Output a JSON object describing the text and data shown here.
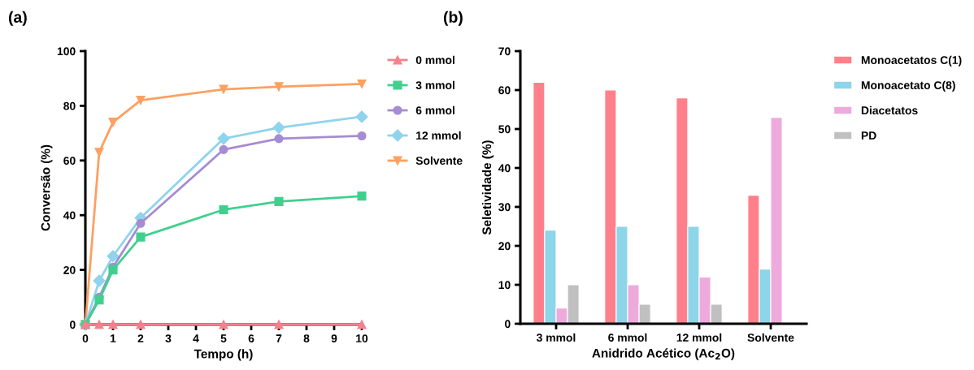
{
  "chart_data": [
    {
      "type": "line",
      "title": "(a)",
      "xlabel": "Tempo (h)",
      "ylabel": "Conversão (%)",
      "x": [
        0,
        0.5,
        1,
        2,
        5,
        7,
        10
      ],
      "xlim": [
        0,
        10
      ],
      "xticks": [
        0,
        1,
        2,
        3,
        4,
        5,
        6,
        7,
        8,
        9,
        10
      ],
      "ylim": [
        0,
        100
      ],
      "yticks": [
        0,
        20,
        40,
        60,
        80,
        100
      ],
      "grid": false,
      "legend": "right",
      "line_style": "solid",
      "series": [
        {
          "name": "0 mmol",
          "color": "#f7808e",
          "marker": "triangle",
          "values": [
            0,
            0,
            0,
            0,
            0,
            0,
            0
          ]
        },
        {
          "name": "3 mmol",
          "color": "#40d08e",
          "marker": "square",
          "values": [
            0,
            9,
            20,
            32,
            42,
            45,
            47
          ]
        },
        {
          "name": "6 mmol",
          "color": "#a68cd2",
          "marker": "circle",
          "values": [
            0,
            10,
            21,
            37,
            64,
            68,
            69
          ]
        },
        {
          "name": "12 mmol",
          "color": "#8fd4ec",
          "marker": "diamond",
          "values": [
            0,
            16,
            25,
            39,
            68,
            72,
            76
          ]
        },
        {
          "name": "Solvente",
          "color": "#fda060",
          "marker": "triangle_down",
          "values": [
            0,
            63,
            74,
            82,
            86,
            87,
            88
          ]
        }
      ]
    },
    {
      "type": "bar",
      "title": "(b)",
      "xlabel": "Anidrido Acético (Ac$_{2}$O)",
      "ylabel": "Seletividade (%)",
      "categories": [
        "3 mmol",
        "6 mmol",
        "12 mmol",
        "Solvente"
      ],
      "ylim": [
        0,
        70
      ],
      "yticks": [
        0,
        10,
        20,
        30,
        40,
        50,
        60,
        70
      ],
      "grid": false,
      "legend": "right",
      "series": [
        {
          "name": "Monoacetatos C(1)",
          "color": "#ff808b",
          "values": [
            62,
            60,
            58,
            33
          ]
        },
        {
          "name": "Monoacetato C(8)",
          "color": "#8dd5e8",
          "values": [
            24,
            25,
            25,
            14
          ]
        },
        {
          "name": "Diacetatos",
          "color": "#eeaadc",
          "values": [
            4,
            10,
            12,
            53
          ]
        },
        {
          "name": "PD",
          "color": "#c0c0c0",
          "values": [
            10,
            5,
            5,
            null
          ]
        }
      ]
    }
  ]
}
